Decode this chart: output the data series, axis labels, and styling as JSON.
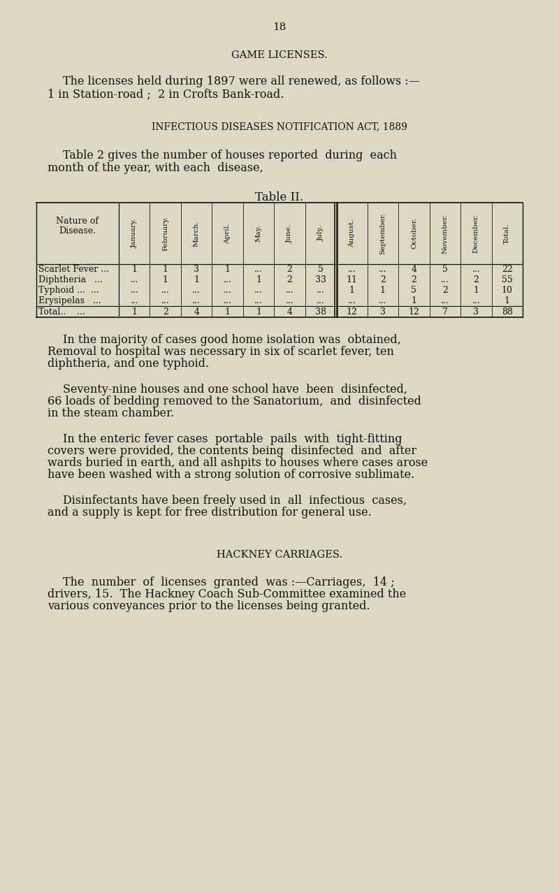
{
  "bg_color": "#ddd8c4",
  "text_color": "#111111",
  "page_number": "18",
  "section1_title": "GAME LICENSES.",
  "section2_title": "INFECTIOUS DISEASES NOTIFICATION ACT, 1889",
  "table_title": "Table II.",
  "col_headers": [
    "January.",
    "February.",
    "March.",
    "April.",
    "May.",
    "June.",
    "July.",
    "August.",
    "September.",
    "October.",
    "November.",
    "December.",
    "Total."
  ],
  "row_labels": [
    "Scarlet Fever ...",
    "Diphtheria",
    "Typhoid ...",
    "Erysipelas",
    "Total.."
  ],
  "table_data": [
    [
      "1",
      "1",
      "3",
      "1",
      "...",
      "2",
      "5",
      "...",
      "...",
      "4",
      "5",
      "...",
      "22"
    ],
    [
      "...",
      "1",
      "1",
      "...",
      "1",
      "2",
      "33",
      "11",
      "2",
      "2",
      "...",
      "2",
      "55"
    ],
    [
      "...",
      "...",
      "...",
      "...",
      "...",
      "...",
      "...",
      "1",
      "1",
      "5",
      "2",
      "1",
      "10"
    ],
    [
      "...",
      "...",
      "...",
      "...",
      "...",
      "...",
      "...",
      "...",
      "...",
      "1",
      "...",
      "...",
      "1"
    ],
    [
      "1",
      "2",
      "4",
      "1",
      "1",
      "4",
      "38",
      "12",
      "3",
      "12",
      "7",
      "3",
      "88"
    ]
  ],
  "line1_p1": "The licenses held during 1897 were all renewed, as follows :—",
  "line2_p1": "1 in Station-road ;  2 in Crofts Bank-road.",
  "line1_p2": "Table 2 gives the number of houses reported  during  each",
  "line2_p2": "month of the year, with each  disease,",
  "para3_lines": [
    "In the majority of cases good home isolation was  obtained,",
    "Removal to hospital was necessary in six of scarlet fever, ten",
    "diphtheria, and one typhoid."
  ],
  "para4_lines": [
    "Seventy-nine houses and one school have  been  disinfected,",
    "66 loads of bedding removed to the Sanatorium,  and  disinfected",
    "in the steam chamber."
  ],
  "para5_lines": [
    "In the enteric fever cases  portable  pails  with  tight-fitting",
    "covers were provided, the contents being  disinfected  and  after",
    "wards buried in earth, and all ashpits to houses where cases arose",
    "have been washed with a strong solution of corrosive sublimate."
  ],
  "para6_lines": [
    "Disinfectants have been freely used in  all  infectious  cases,",
    "and a supply is kept for free distribution for general use."
  ],
  "section3_title": "HACKNEY CARRIAGES.",
  "para7_lines": [
    "The  number  of  licenses  granted  was :—Carriages,  14 ;",
    "drivers, 15.  The Hackney Coach Sub-Committee examined the",
    "various conveyances prior to the licenses being granted."
  ]
}
